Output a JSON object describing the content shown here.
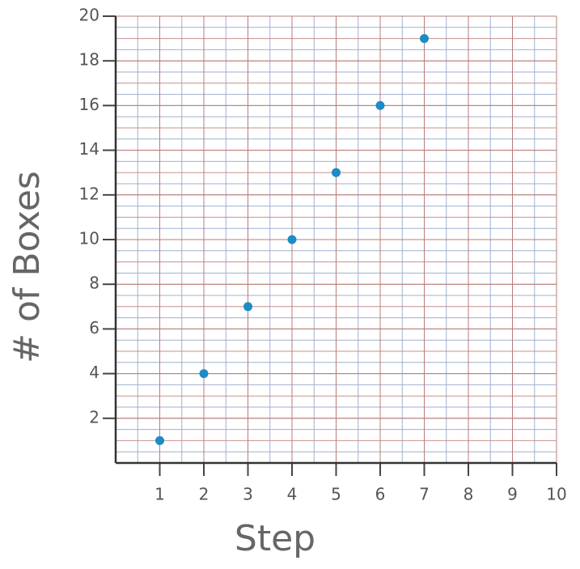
{
  "chart_data": {
    "type": "scatter",
    "x_label": "Step",
    "y_label": "# of Boxes",
    "x": [
      1,
      2,
      3,
      4,
      5,
      6,
      7
    ],
    "series": [
      {
        "color": "#1b8cc6",
        "values": [
          1,
          4,
          7,
          10,
          13,
          16,
          19
        ]
      }
    ],
    "xlim": [
      0,
      10
    ],
    "ylim": [
      0,
      20
    ],
    "xticks": [
      1,
      2,
      3,
      4,
      5,
      6,
      7,
      8,
      9,
      10
    ],
    "yticks": [
      2,
      4,
      6,
      8,
      10,
      12,
      14,
      16,
      18,
      20
    ],
    "grid": true
  }
}
